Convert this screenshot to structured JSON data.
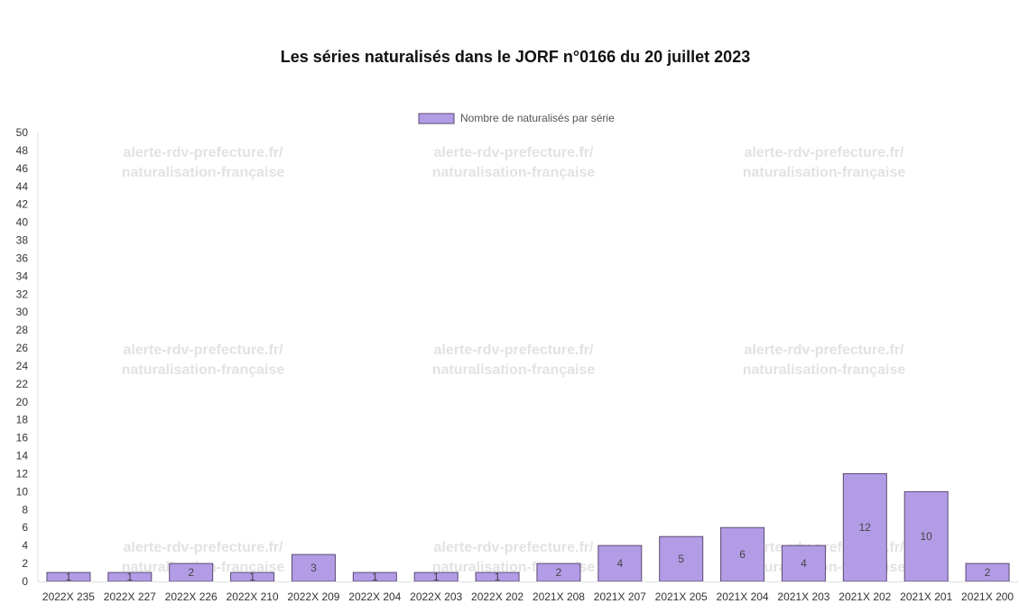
{
  "watermark": {
    "line1": "alerte-rdv-prefecture.fr/",
    "line2": "naturalisation-française"
  },
  "chart_data": {
    "type": "bar",
    "title": "Les séries naturalisés dans le JORF n°0166 du 20 juillet 2023",
    "xlabel": "",
    "ylabel": "",
    "ylim": [
      0,
      50
    ],
    "ytick_step": 2,
    "grid": false,
    "legend_position": "top-center",
    "categories": [
      "2022X 235",
      "2022X 227",
      "2022X 226",
      "2022X 210",
      "2022X 209",
      "2022X 204",
      "2022X 203",
      "2022X 202",
      "2021X 208",
      "2021X 207",
      "2021X 205",
      "2021X 204",
      "2021X 203",
      "2021X 202",
      "2021X 201",
      "2021X 200"
    ],
    "series": [
      {
        "name": "Nombre de naturalisés par série",
        "values": [
          1,
          1,
          2,
          1,
          3,
          1,
          1,
          1,
          2,
          4,
          5,
          6,
          4,
          12,
          10,
          2
        ],
        "color": "#b39ce6",
        "border_color": "#5a4a72"
      }
    ]
  }
}
